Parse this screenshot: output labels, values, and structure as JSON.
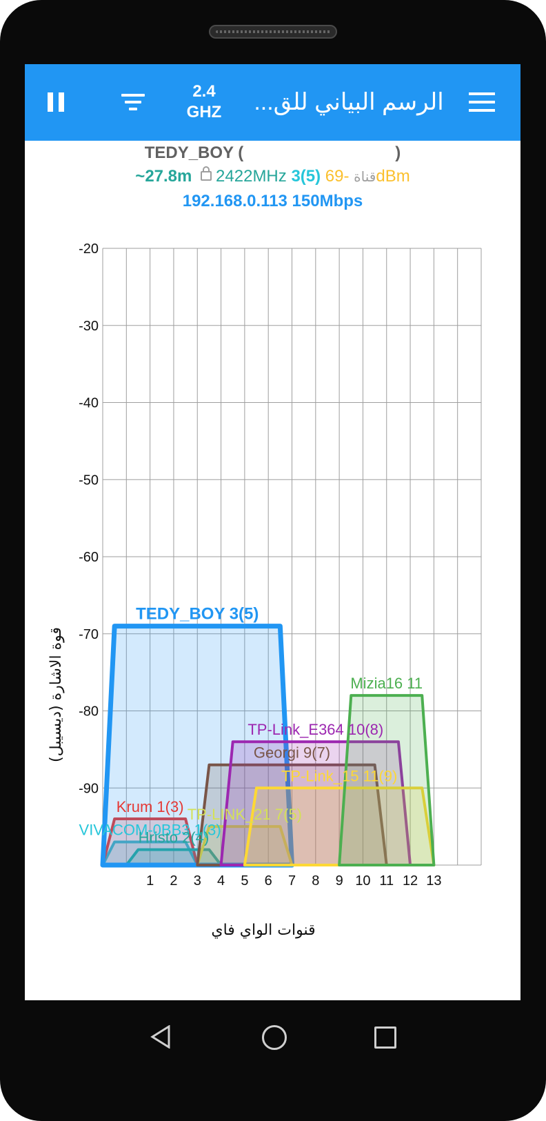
{
  "appbar": {
    "band_top": "2.4",
    "band_bottom": "GHZ",
    "title": "الرسم البياني للق..."
  },
  "connection": {
    "ssid": "TEDY_BOY",
    "paren_open": "(",
    "paren_close": ")",
    "distance": "~27.8m",
    "frequency": "2422MHz",
    "channel": "3(5)",
    "channel_label": "قناة",
    "signal": "-69dBm",
    "ip_speed": "192.168.0.113 150Mbps"
  },
  "chart_data": {
    "type": "area",
    "ylabel": "قوة الاشارة (ديسيبل)",
    "xlabel": "قنوات الواي فاي",
    "ylim": [
      -100,
      -20
    ],
    "yticks": [
      -20,
      -30,
      -40,
      -50,
      -60,
      -70,
      -80,
      -90
    ],
    "xticks": [
      1,
      2,
      3,
      4,
      5,
      6,
      7,
      8,
      9,
      10,
      11,
      12,
      13
    ],
    "xlim": [
      -1,
      15
    ],
    "grid": true,
    "series": [
      {
        "name": "VIVACOM-0BB3 1(3)",
        "center": 1,
        "width": 20,
        "signal": -97,
        "color": "#26c6da"
      },
      {
        "name": "Krum 1(3)",
        "center": 1,
        "width": 20,
        "signal": -94,
        "color": "#e53935"
      },
      {
        "name": "Hristo 2(4)",
        "center": 2,
        "width": 20,
        "signal": -98,
        "color": "#26a69a"
      },
      {
        "name": "TEDY_BOY 3(5)",
        "center": 3,
        "width": 40,
        "signal": -69,
        "color": "#2196f3"
      },
      {
        "name": "TP-LINK_21 7(5)",
        "center": 5,
        "width": 20,
        "signal": -95,
        "color": "#d4e157"
      },
      {
        "name": "Georgi 9(7)",
        "center": 7,
        "width": 40,
        "signal": -87,
        "color": "#795548"
      },
      {
        "name": "TP-Link_E364 10(8)",
        "center": 8,
        "width": 40,
        "signal": -84,
        "color": "#9c27b0"
      },
      {
        "name": "TP-Link_15 11(9)",
        "center": 9,
        "width": 40,
        "signal": -90,
        "color": "#fdd835"
      },
      {
        "name": "Mizia16 11",
        "center": 11,
        "width": 20,
        "signal": -78,
        "color": "#4caf50"
      }
    ]
  }
}
